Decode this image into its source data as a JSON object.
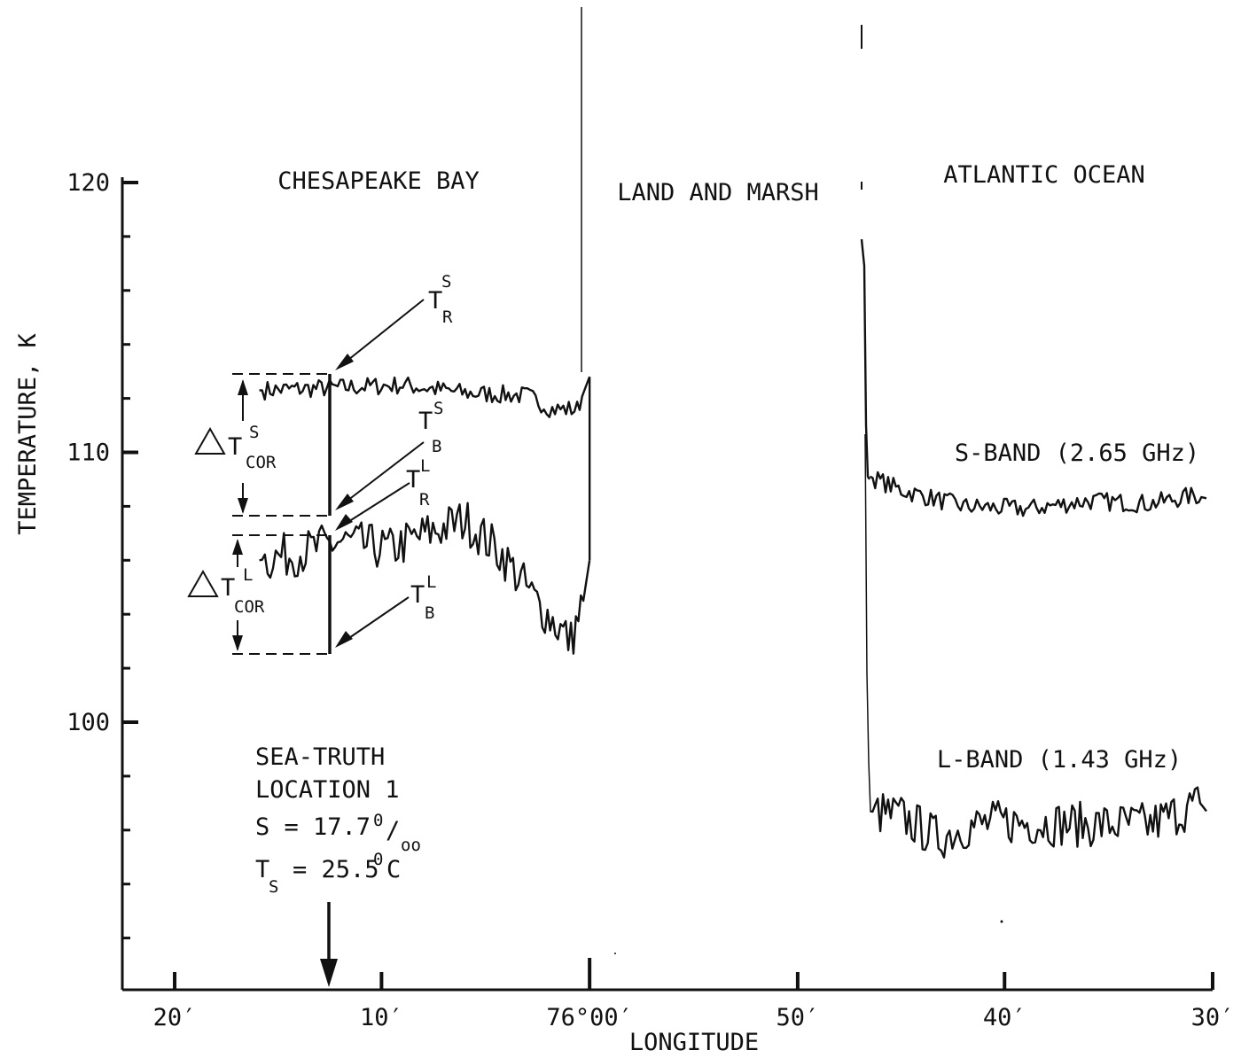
{
  "chart_data": {
    "type": "line",
    "xlabel": "LONGITUDE",
    "ylabel": "TEMPERATURE, K",
    "xlim": [
      -76.375,
      -75.5
    ],
    "ylim": [
      90,
      120
    ],
    "x_ticks": [
      {
        "value": -76.333,
        "label": "20′"
      },
      {
        "value": -76.167,
        "label": "10′"
      },
      {
        "value": -76.0,
        "label": "76°00′"
      },
      {
        "value": -75.833,
        "label": "50′"
      },
      {
        "value": -75.667,
        "label": "40′"
      },
      {
        "value": -75.5,
        "label": "30′"
      }
    ],
    "y_ticks": [
      {
        "value": 120,
        "label": "120"
      },
      {
        "value": 110,
        "label": "110"
      },
      {
        "value": 100,
        "label": "100"
      }
    ],
    "regions": [
      "CHESAPEAKE BAY",
      "LAND AND MARSH",
      "ATLANTIC OCEAN"
    ],
    "series": [
      {
        "name": "S-BAND (2.65 GHz)",
        "segments": [
          {
            "x": [
              -76.265,
              -76.2,
              -76.15,
              -76.1,
              -76.05,
              -76.03,
              -76.01,
              -76.0
            ],
            "y": [
              112.3,
              112.4,
              112.5,
              112.2,
              112.1,
              111.6,
              111.6,
              112.8
            ]
          },
          {
            "x": [
              -75.775,
              -75.75,
              -75.7,
              -75.65,
              -75.6,
              -75.55,
              -75.515,
              -75.505
            ],
            "y": [
              109.1,
              108.6,
              108.0,
              107.9,
              108.2,
              108.1,
              108.4,
              108.3
            ]
          }
        ]
      },
      {
        "name": "L-BAND (1.43 GHz)",
        "segments": [
          {
            "x": [
              -76.265,
              -76.23,
              -76.2,
              -76.16,
              -76.13,
              -76.1,
              -76.07,
              -76.04,
              -76.015,
              -76.005,
              -76.0
            ],
            "y": [
              106.0,
              106.3,
              106.7,
              106.4,
              107.0,
              107.5,
              106.2,
              104.3,
              103.0,
              104.5,
              106.0
            ]
          },
          {
            "x": [
              -75.775,
              -75.75,
              -75.72,
              -75.7,
              -75.67,
              -75.6,
              -75.55,
              -75.51,
              -75.505
            ],
            "y": [
              96.7,
              96.5,
              95.7,
              96.1,
              96.3,
              96.2,
              96.2,
              97.0,
              96.7
            ]
          }
        ]
      }
    ],
    "annotations": {
      "t_r_s": {
        "main": "T",
        "sup": "S",
        "sub": "R",
        "value": 112.8
      },
      "t_b_s": {
        "main": "T",
        "sup": "S",
        "sub": "B",
        "value": 107.6
      },
      "t_r_l": {
        "main": "T",
        "sup": "L",
        "sub": "R",
        "value": 106.9
      },
      "t_b_l": {
        "main": "T",
        "sup": "L",
        "sub": "B",
        "value": 102.6
      },
      "delta_s": {
        "main": "T",
        "sup": "S",
        "sub": "COR"
      },
      "delta_l": {
        "main": "T",
        "sup": "L",
        "sub": "COR"
      },
      "sea_truth": {
        "line1": "SEA-TRUTH",
        "line2": "LOCATION 1",
        "salinity": "S = 17.7",
        "salinity_sup": "0",
        "salinity_slash": "/",
        "salinity_sub": "oo",
        "temp_main": "T",
        "temp_sub": "S",
        "temp_value": "= 25.5",
        "temp_sup": "0",
        "temp_unit": "C",
        "x": -76.205
      }
    }
  }
}
